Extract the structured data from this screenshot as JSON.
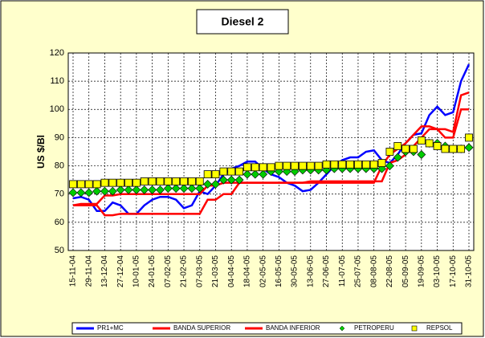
{
  "chart_data": {
    "type": "line",
    "title": "Diesel 2",
    "y_label": "US $/Bl",
    "categories": [
      "15-11-04",
      null,
      "29-11-04",
      null,
      "13-12-04",
      null,
      "27-12-04",
      null,
      "10-01-05",
      null,
      "24-01-05",
      null,
      "07-02-05",
      null,
      "21-02-05",
      null,
      "07-03-05",
      null,
      "21-03-05",
      null,
      "04-04-05",
      null,
      "18-04-05",
      null,
      "02-05-05",
      null,
      "16-05-05",
      null,
      "30-05-05",
      null,
      "13-06-05",
      null,
      "27-06-05",
      null,
      "11-07-05",
      null,
      "25-07-05",
      null,
      "08-08-05",
      null,
      "22-08-05",
      null,
      "05-09-05",
      null,
      "19-09-05",
      null,
      "03-10-05",
      null,
      "17-10-05",
      null,
      "31-10-05"
    ],
    "ylim": [
      50,
      120
    ],
    "yticks": [
      50,
      60,
      70,
      80,
      90,
      100,
      110,
      120
    ],
    "grid": true,
    "legend": "bottom",
    "series": [
      {
        "name": "PR1+MC",
        "color": "#0000ff",
        "style": "line",
        "values": [
          68.5,
          69,
          68,
          64,
          64,
          67,
          66,
          63,
          63,
          66,
          68,
          69,
          69,
          68,
          65,
          66,
          71,
          70,
          73,
          77,
          79,
          80,
          81.5,
          81.5,
          79,
          77,
          76,
          74,
          73,
          71,
          71.5,
          74,
          77,
          80,
          82,
          83,
          83,
          85,
          85.5,
          82,
          81,
          84,
          88,
          91,
          91.5,
          98,
          101,
          98,
          99,
          110,
          116
        ]
      },
      {
        "name": "BANDA SUPERIOR",
        "color": "#ff0000",
        "style": "line",
        "values": [
          66,
          66.5,
          66.5,
          66.5,
          69.5,
          69.5,
          70,
          70,
          70,
          70,
          70,
          70,
          70,
          70,
          70,
          70,
          70,
          73,
          73,
          74,
          74,
          74,
          74,
          74,
          74,
          74,
          74,
          74,
          74,
          74,
          74,
          74,
          74,
          74,
          74,
          74,
          74,
          74,
          74,
          80,
          84,
          86,
          88,
          91,
          94,
          94,
          93,
          93,
          92,
          105,
          106
        ]
      },
      {
        "name": "BANDA INFERIOR",
        "color": "#ff0000",
        "style": "line",
        "values": [
          66,
          66,
          66,
          66,
          62.5,
          62.5,
          63,
          63,
          63,
          63,
          63,
          63,
          63,
          63,
          63,
          63,
          63,
          68,
          68,
          70,
          70,
          74,
          74,
          74,
          74,
          74,
          74,
          74,
          74,
          74,
          74.5,
          74.5,
          74.5,
          74.5,
          74.5,
          74.5,
          74.5,
          74.5,
          74.5,
          74.5,
          81,
          82,
          84,
          87,
          90,
          93,
          93,
          90,
          90,
          100,
          100
        ]
      },
      {
        "name": "PETROPERU",
        "color": "#00cc00",
        "style": "diamond",
        "values": [
          70.5,
          70.5,
          70.5,
          71,
          71,
          71,
          71.5,
          71.5,
          71.5,
          71.5,
          71.5,
          71.5,
          72,
          72,
          72,
          72,
          72,
          73.5,
          73.5,
          75,
          75,
          75,
          77,
          77,
          77,
          78,
          78,
          78,
          78,
          78.5,
          78.5,
          78.5,
          78.5,
          79,
          79,
          79,
          79,
          79,
          79,
          79,
          80,
          83,
          85,
          85,
          84,
          88,
          88,
          87,
          86,
          86,
          86.5
        ]
      },
      {
        "name": "REPSOL",
        "color": "#ffff00",
        "style": "square",
        "values": [
          73.5,
          73.5,
          73.5,
          73.5,
          74,
          74,
          74,
          74,
          74,
          74.5,
          74.5,
          74.5,
          74.5,
          74.5,
          74.5,
          74.5,
          74.5,
          77,
          77,
          78,
          78,
          78,
          79.5,
          79.5,
          79.5,
          79.5,
          80,
          80,
          80,
          80,
          80,
          80,
          80.5,
          80.5,
          80.5,
          80.5,
          80.5,
          80.5,
          80.5,
          81,
          85,
          87,
          86,
          86,
          89,
          88,
          87,
          86,
          86,
          86,
          90
        ]
      }
    ]
  }
}
